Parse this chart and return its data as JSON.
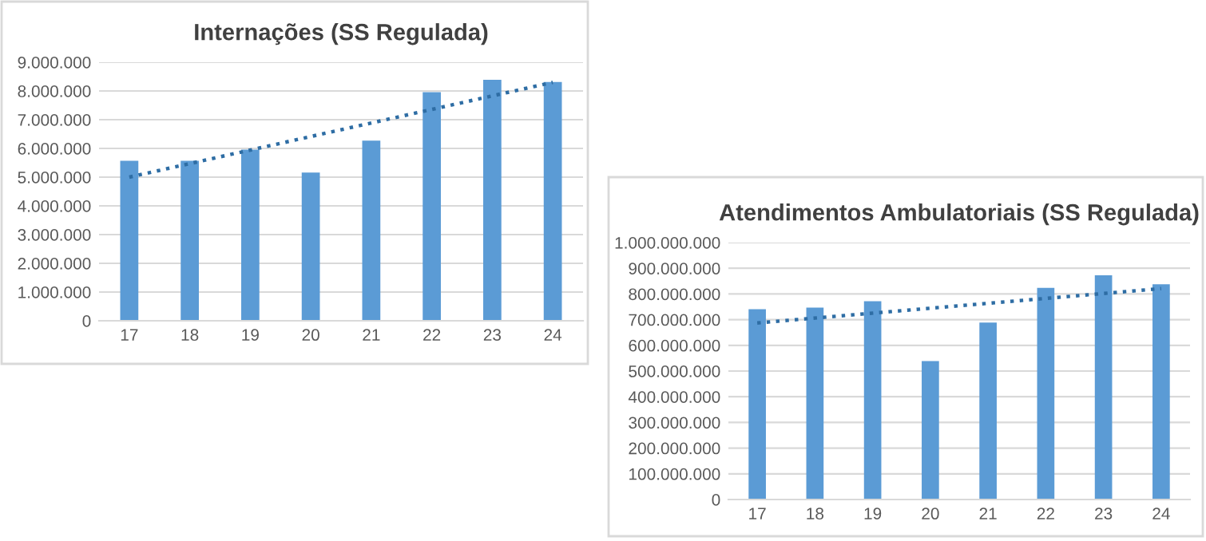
{
  "chart_data": [
    {
      "type": "bar",
      "title": "Internações (SS Regulada)",
      "categories": [
        "17",
        "18",
        "19",
        "20",
        "21",
        "22",
        "23",
        "24"
      ],
      "series": [
        {
          "color": "#5b9bd5",
          "values": [
            5570000,
            5570000,
            5960000,
            5160000,
            6270000,
            7960000,
            8390000,
            8310000
          ]
        },
        {
          "type": "line",
          "color": "#2e6da4",
          "line_style": "dotted",
          "x": [
            "17",
            "24"
          ],
          "values": [
            5000000,
            8300000
          ]
        }
      ],
      "ylim": [
        0,
        9000000
      ],
      "yticks": [
        0,
        {
          "value": 1000000,
          "label": "1.000.000"
        },
        {
          "value": 2000000,
          "label": "2.000.000"
        },
        {
          "value": 3000000,
          "label": "3.000.000"
        },
        {
          "value": 4000000,
          "label": "4.000.000"
        },
        {
          "value": 5000000,
          "label": "5.000.000"
        },
        {
          "value": 6000000,
          "label": "6.000.000"
        },
        {
          "value": 7000000,
          "label": "7.000.000"
        },
        {
          "value": 8000000,
          "label": "8.000.000"
        },
        {
          "value": 9000000,
          "label": "9.000.000"
        }
      ],
      "grid": "y"
    },
    {
      "type": "bar",
      "title": "Atendimentos Ambulatoriais (SS Regulada)",
      "categories": [
        "17",
        "18",
        "19",
        "20",
        "21",
        "22",
        "23",
        "24"
      ],
      "series": [
        {
          "color": "#5b9bd5",
          "values": [
            741000000,
            747000000,
            772000000,
            539000000,
            689000000,
            824000000,
            873000000,
            838000000
          ]
        },
        {
          "type": "line",
          "color": "#2e6da4",
          "line_style": "dotted",
          "x": [
            "17",
            "24"
          ],
          "values": [
            687000000,
            821000000
          ]
        }
      ],
      "ylim": [
        0,
        1000000000
      ],
      "yticks": [
        0,
        {
          "value": 100000000,
          "label": "100.000.000"
        },
        {
          "value": 200000000,
          "label": "200.000.000"
        },
        {
          "value": 300000000,
          "label": "300.000.000"
        },
        {
          "value": 400000000,
          "label": "400.000.000"
        },
        {
          "value": 500000000,
          "label": "500.000.000"
        },
        {
          "value": 600000000,
          "label": "600.000.000"
        },
        {
          "value": 700000000,
          "label": "700.000.000"
        },
        {
          "value": 800000000,
          "label": "800.000.000"
        },
        {
          "value": 900000000,
          "label": "900.000.000"
        },
        {
          "value": 1000000000,
          "label": "1.000.000.000"
        }
      ],
      "grid": "y"
    }
  ]
}
